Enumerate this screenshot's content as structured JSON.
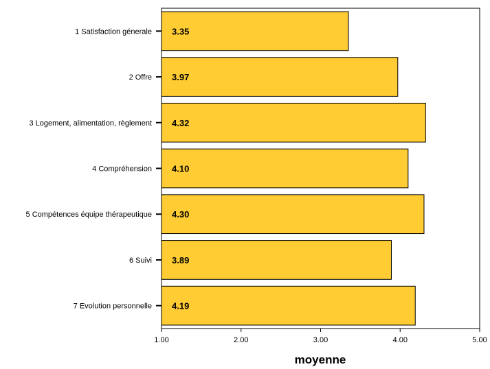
{
  "chart_data": {
    "type": "bar",
    "orientation": "horizontal",
    "categories": [
      "1 Satisfaction génerale",
      "2 Offre",
      "3 Logement, alimentation, règlement",
      "4 Compréhension",
      "5 Compétences équipe thérapeutique",
      "6 Suivi",
      "7 Evolution personnelle"
    ],
    "values": [
      3.35,
      3.97,
      4.32,
      4.1,
      4.3,
      3.89,
      4.19
    ],
    "value_labels": [
      "3.35",
      "3.97",
      "4.32",
      "4.10",
      "4.30",
      "3.89",
      "4.19"
    ],
    "xlim": [
      1.0,
      5.0
    ],
    "x_ticks": [
      1.0,
      2.0,
      3.0,
      4.0,
      5.0
    ],
    "x_tick_labels": [
      "1.00",
      "2.00",
      "3.00",
      "4.00",
      "5.00"
    ],
    "xlabel": "moyenne",
    "ylabel": "",
    "title": "",
    "grid": false,
    "legend": "none",
    "colors": {
      "bar_fill": "#FFCC33",
      "bar_stroke": "#000000",
      "axis": "#000000",
      "background": "#FFFFFF"
    }
  }
}
